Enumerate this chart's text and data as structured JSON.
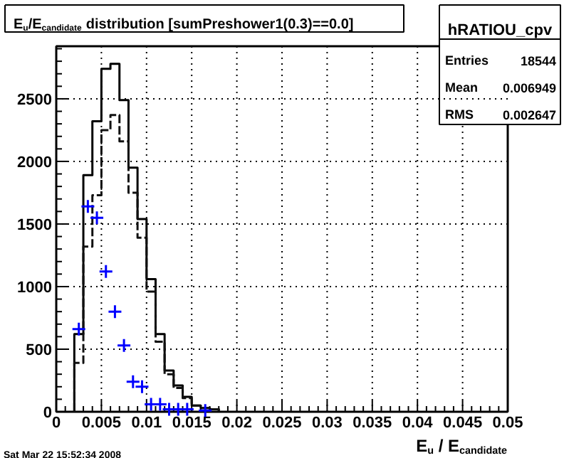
{
  "chart_data": {
    "type": "histogram",
    "title": "E$_{u}$/E$_{candidate}$ distribution [sumPreshower1(0.3)==0.0]",
    "xlabel": "E$_{u}$ / E$_{candidate}$",
    "bins": [
      0.002,
      0.003,
      0.004,
      0.005,
      0.006,
      0.007,
      0.008,
      0.009,
      0.01,
      0.011,
      0.012,
      0.013,
      0.014,
      0.015,
      0.016,
      0.017,
      0.018
    ],
    "series": [
      {
        "color": "#000000",
        "line_style": "solid",
        "values": [
          620,
          1890,
          2320,
          2740,
          2780,
          2490,
          1950,
          1540,
          1060,
          620,
          330,
          210,
          120,
          50,
          30,
          20
        ]
      },
      {
        "color": "#111111",
        "line_style": "dashed",
        "values": [
          390,
          1320,
          1730,
          2250,
          2370,
          2160,
          1750,
          1390,
          960,
          560,
          300,
          190,
          110,
          50,
          30,
          20
        ]
      },
      {
        "type": "scatter",
        "color": "#0000ff",
        "marker": "cross",
        "x": [
          0.0025,
          0.0035,
          0.0045,
          0.0055,
          0.0065,
          0.0075,
          0.0085,
          0.0095,
          0.0105,
          0.0115,
          0.0125,
          0.0135,
          0.0145,
          0.0165
        ],
        "values": [
          660,
          1640,
          1550,
          1120,
          800,
          530,
          240,
          200,
          60,
          60,
          20,
          20,
          20,
          10
        ]
      }
    ],
    "xlim": [
      0,
      0.05
    ],
    "xticks": [
      0,
      0.005,
      0.01,
      0.015,
      0.02,
      0.025,
      0.03,
      0.035,
      0.04,
      0.045,
      0.05
    ],
    "ylim": [
      0,
      2920
    ],
    "yticks": [
      0,
      500,
      1000,
      1500,
      2000,
      2500
    ],
    "grid": true,
    "annotations": [
      "hRATIOU_cpv",
      "Entries",
      "18544",
      "Mean",
      "0.006949",
      "RMS",
      "0.002647",
      "Sat Mar 22 15:52:34 2008"
    ]
  }
}
